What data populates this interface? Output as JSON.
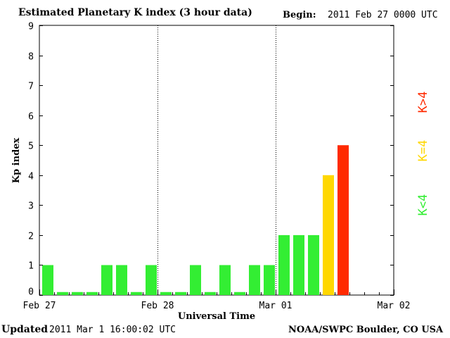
{
  "header": {
    "title": "Estimated Planetary K index (3 hour data)",
    "begin_label": "Begin:",
    "begin_value": "2011 Feb 27 0000 UTC"
  },
  "footer": {
    "updated_label": "Updated",
    "updated_value": "2011 Mar  1 16:00:02 UTC",
    "source": "NOAA/SWPC Boulder, CO USA"
  },
  "colors": {
    "low": "#33ee33",
    "equal": "#ffd700",
    "high": "#ff2a00",
    "separator": "#000000"
  },
  "legend": [
    {
      "label": "K<4",
      "color": "#33ee33"
    },
    {
      "label": "K=4",
      "color": "#ffd700"
    },
    {
      "label": "K>4",
      "color": "#ff2a00"
    }
  ],
  "chart_data": {
    "type": "bar",
    "title": "Estimated Planetary K index (3 hour data)",
    "xlabel": "Universal Time",
    "ylabel": "Kp index",
    "ylim": [
      0,
      9
    ],
    "yticks": [
      0,
      1,
      2,
      3,
      4,
      5,
      6,
      7,
      8,
      9
    ],
    "day_labels": [
      "Feb 27",
      "Feb 28",
      "Mar 01",
      "Mar 02"
    ],
    "bars_per_day": 8,
    "values": [
      1,
      0,
      0,
      0,
      1,
      1,
      0,
      1,
      0,
      0,
      1,
      0,
      1,
      0,
      1,
      1,
      2,
      2,
      2,
      4,
      5
    ],
    "grid": false,
    "legend_position": "right"
  }
}
